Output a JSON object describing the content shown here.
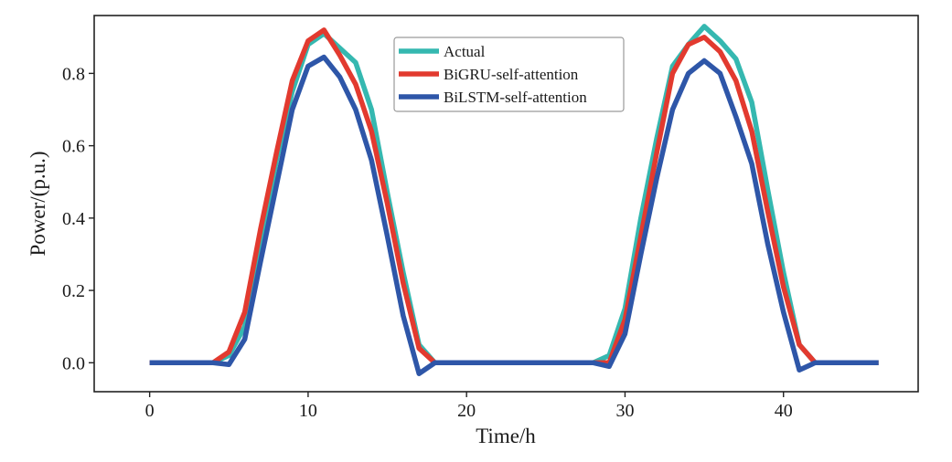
{
  "chart_data": {
    "type": "line",
    "title": "",
    "xlabel": "Time/h",
    "ylabel": "Power/(p.u.)",
    "xlim": [
      -3.5,
      48.5
    ],
    "ylim": [
      -0.08,
      0.96
    ],
    "xticks": [
      0,
      10,
      20,
      30,
      40
    ],
    "yticks": [
      0.0,
      0.2,
      0.4,
      0.6,
      0.8
    ],
    "ytick_labels": [
      "0.0",
      "0.2",
      "0.4",
      "0.6",
      "0.8"
    ],
    "grid": false,
    "legend_position": "top-center",
    "x": [
      0,
      1,
      2,
      3,
      4,
      5,
      6,
      7,
      8,
      9,
      10,
      11,
      12,
      13,
      14,
      15,
      16,
      17,
      18,
      19,
      20,
      21,
      22,
      23,
      24,
      25,
      26,
      27,
      28,
      29,
      30,
      31,
      32,
      33,
      34,
      35,
      36,
      37,
      38,
      39,
      40,
      41,
      42,
      43,
      44,
      45,
      46
    ],
    "series": [
      {
        "name": "Actual",
        "color": "#35b8b0",
        "values": [
          0,
          0,
          0,
          0,
          0,
          0.02,
          0.1,
          0.32,
          0.56,
          0.75,
          0.88,
          0.91,
          0.87,
          0.83,
          0.7,
          0.47,
          0.25,
          0.05,
          0,
          0,
          0,
          0,
          0,
          0,
          0,
          0,
          0,
          0,
          0,
          0.02,
          0.15,
          0.4,
          0.62,
          0.82,
          0.88,
          0.93,
          0.89,
          0.84,
          0.72,
          0.48,
          0.25,
          0.05,
          0,
          0,
          0,
          0,
          0
        ]
      },
      {
        "name": "BiGRU-self-attention",
        "color": "#e23a2f",
        "values": [
          0,
          0,
          0,
          0,
          0,
          0.03,
          0.14,
          0.37,
          0.58,
          0.78,
          0.89,
          0.92,
          0.85,
          0.77,
          0.64,
          0.44,
          0.22,
          0.04,
          0,
          0,
          0,
          0,
          0,
          0,
          0,
          0,
          0,
          0,
          0,
          0,
          0.12,
          0.35,
          0.58,
          0.8,
          0.88,
          0.9,
          0.86,
          0.78,
          0.64,
          0.42,
          0.21,
          0.05,
          0,
          0,
          0,
          0,
          0
        ]
      },
      {
        "name": "BiLSTM-self-attention",
        "color": "#2e56a8",
        "values": [
          0,
          0,
          0,
          0,
          0,
          -0.005,
          0.065,
          0.28,
          0.49,
          0.7,
          0.82,
          0.845,
          0.79,
          0.7,
          0.56,
          0.35,
          0.13,
          -0.03,
          0,
          0,
          0,
          0,
          0,
          0,
          0,
          0,
          0,
          0,
          0,
          -0.01,
          0.08,
          0.3,
          0.51,
          0.7,
          0.8,
          0.835,
          0.8,
          0.68,
          0.55,
          0.33,
          0.14,
          -0.02,
          0,
          0,
          0,
          0,
          0
        ]
      }
    ]
  }
}
